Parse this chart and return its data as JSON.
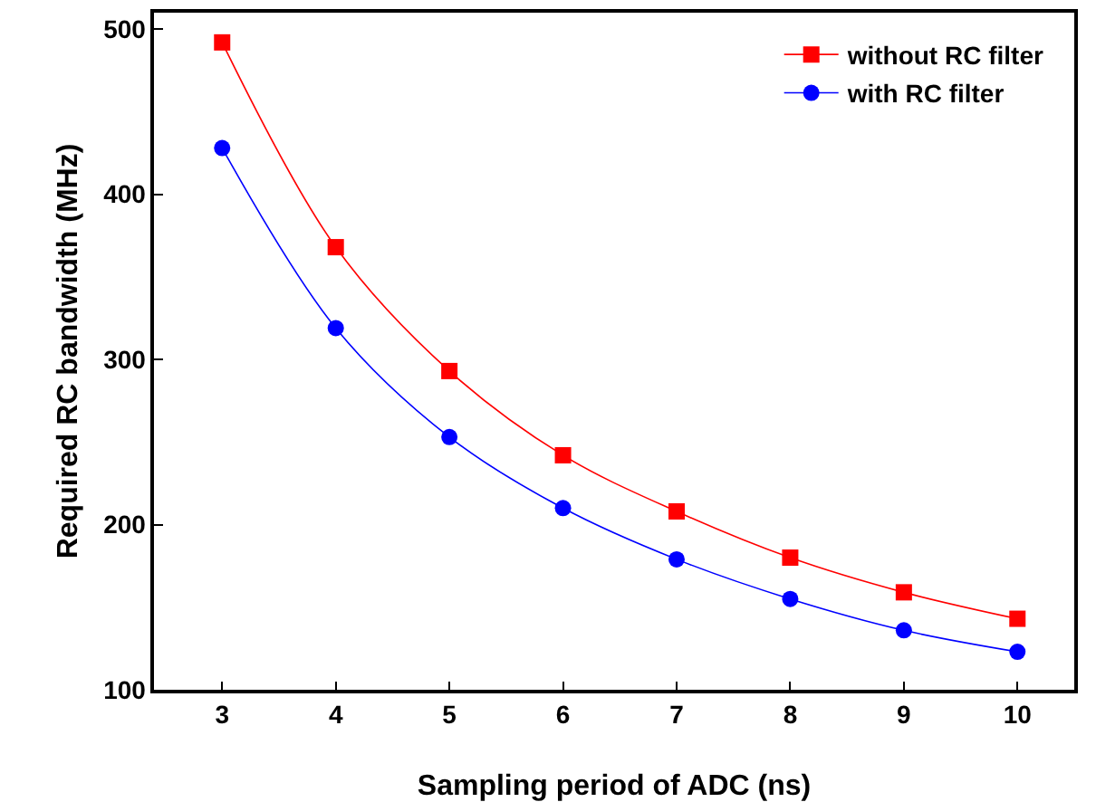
{
  "chart_data": {
    "type": "line",
    "xlabel": "Sampling period of ADC (ns)",
    "ylabel": "Required RC bandwidth (MHz)",
    "x": [
      3,
      4,
      5,
      6,
      7,
      8,
      9,
      10
    ],
    "series": [
      {
        "name": "without RC filter",
        "color": "#ff0000",
        "marker": "square",
        "values": [
          492,
          368,
          293,
          242,
          208,
          180,
          159,
          143
        ]
      },
      {
        "name": "with RC filter",
        "color": "#0000ff",
        "marker": "circle",
        "values": [
          428,
          319,
          253,
          210,
          179,
          155,
          136,
          123
        ]
      }
    ],
    "xlim": [
      2.4,
      10.5
    ],
    "xticks": [
      3,
      4,
      5,
      6,
      7,
      8,
      9,
      10
    ],
    "ylim": [
      100,
      510
    ],
    "yticks": [
      100,
      200,
      300,
      400,
      500
    ],
    "grid": false,
    "legend": "top right"
  }
}
